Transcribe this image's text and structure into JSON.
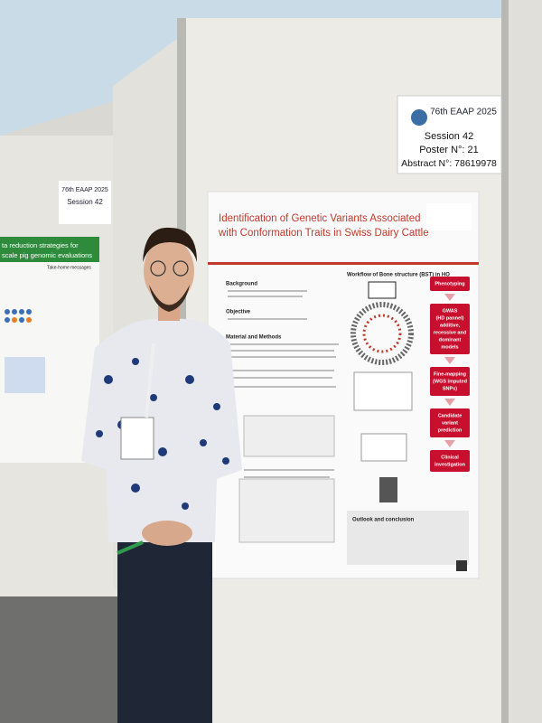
{
  "sign_right": {
    "event": "76th EAAP 2025",
    "session": "Session 42",
    "poster": "Poster N°: 21",
    "abstract": "Abstract N°: 78619978"
  },
  "sign_left": {
    "event": "76th EAAP 2025",
    "session": "Session 42"
  },
  "poster": {
    "title_lines": [
      "Identification of Genetic Variants Associated",
      "with Conformation Traits in Swiss Dairy Cattle"
    ],
    "sections": [
      "Background",
      "Objective",
      "Material and Methods",
      "Outlook and conclusion"
    ],
    "workflow_title": "Workflow of Bone structure (BST) in HO",
    "steps": [
      [
        "Phenotyping"
      ],
      [
        "GWAS",
        "(HD pannel)",
        "additive,",
        "recessive and",
        "dominant",
        "models"
      ],
      [
        "Fine-mapping",
        "(WGS imputed",
        "SNPs)"
      ],
      [
        "Candidate",
        "variant",
        "prediction"
      ],
      [
        "Clinical",
        "investigation"
      ]
    ]
  },
  "left_poster": {
    "title_lines": [
      "ta reduction strategies for",
      "scale pig genomic evaluations"
    ],
    "box": "Take-home messages"
  }
}
